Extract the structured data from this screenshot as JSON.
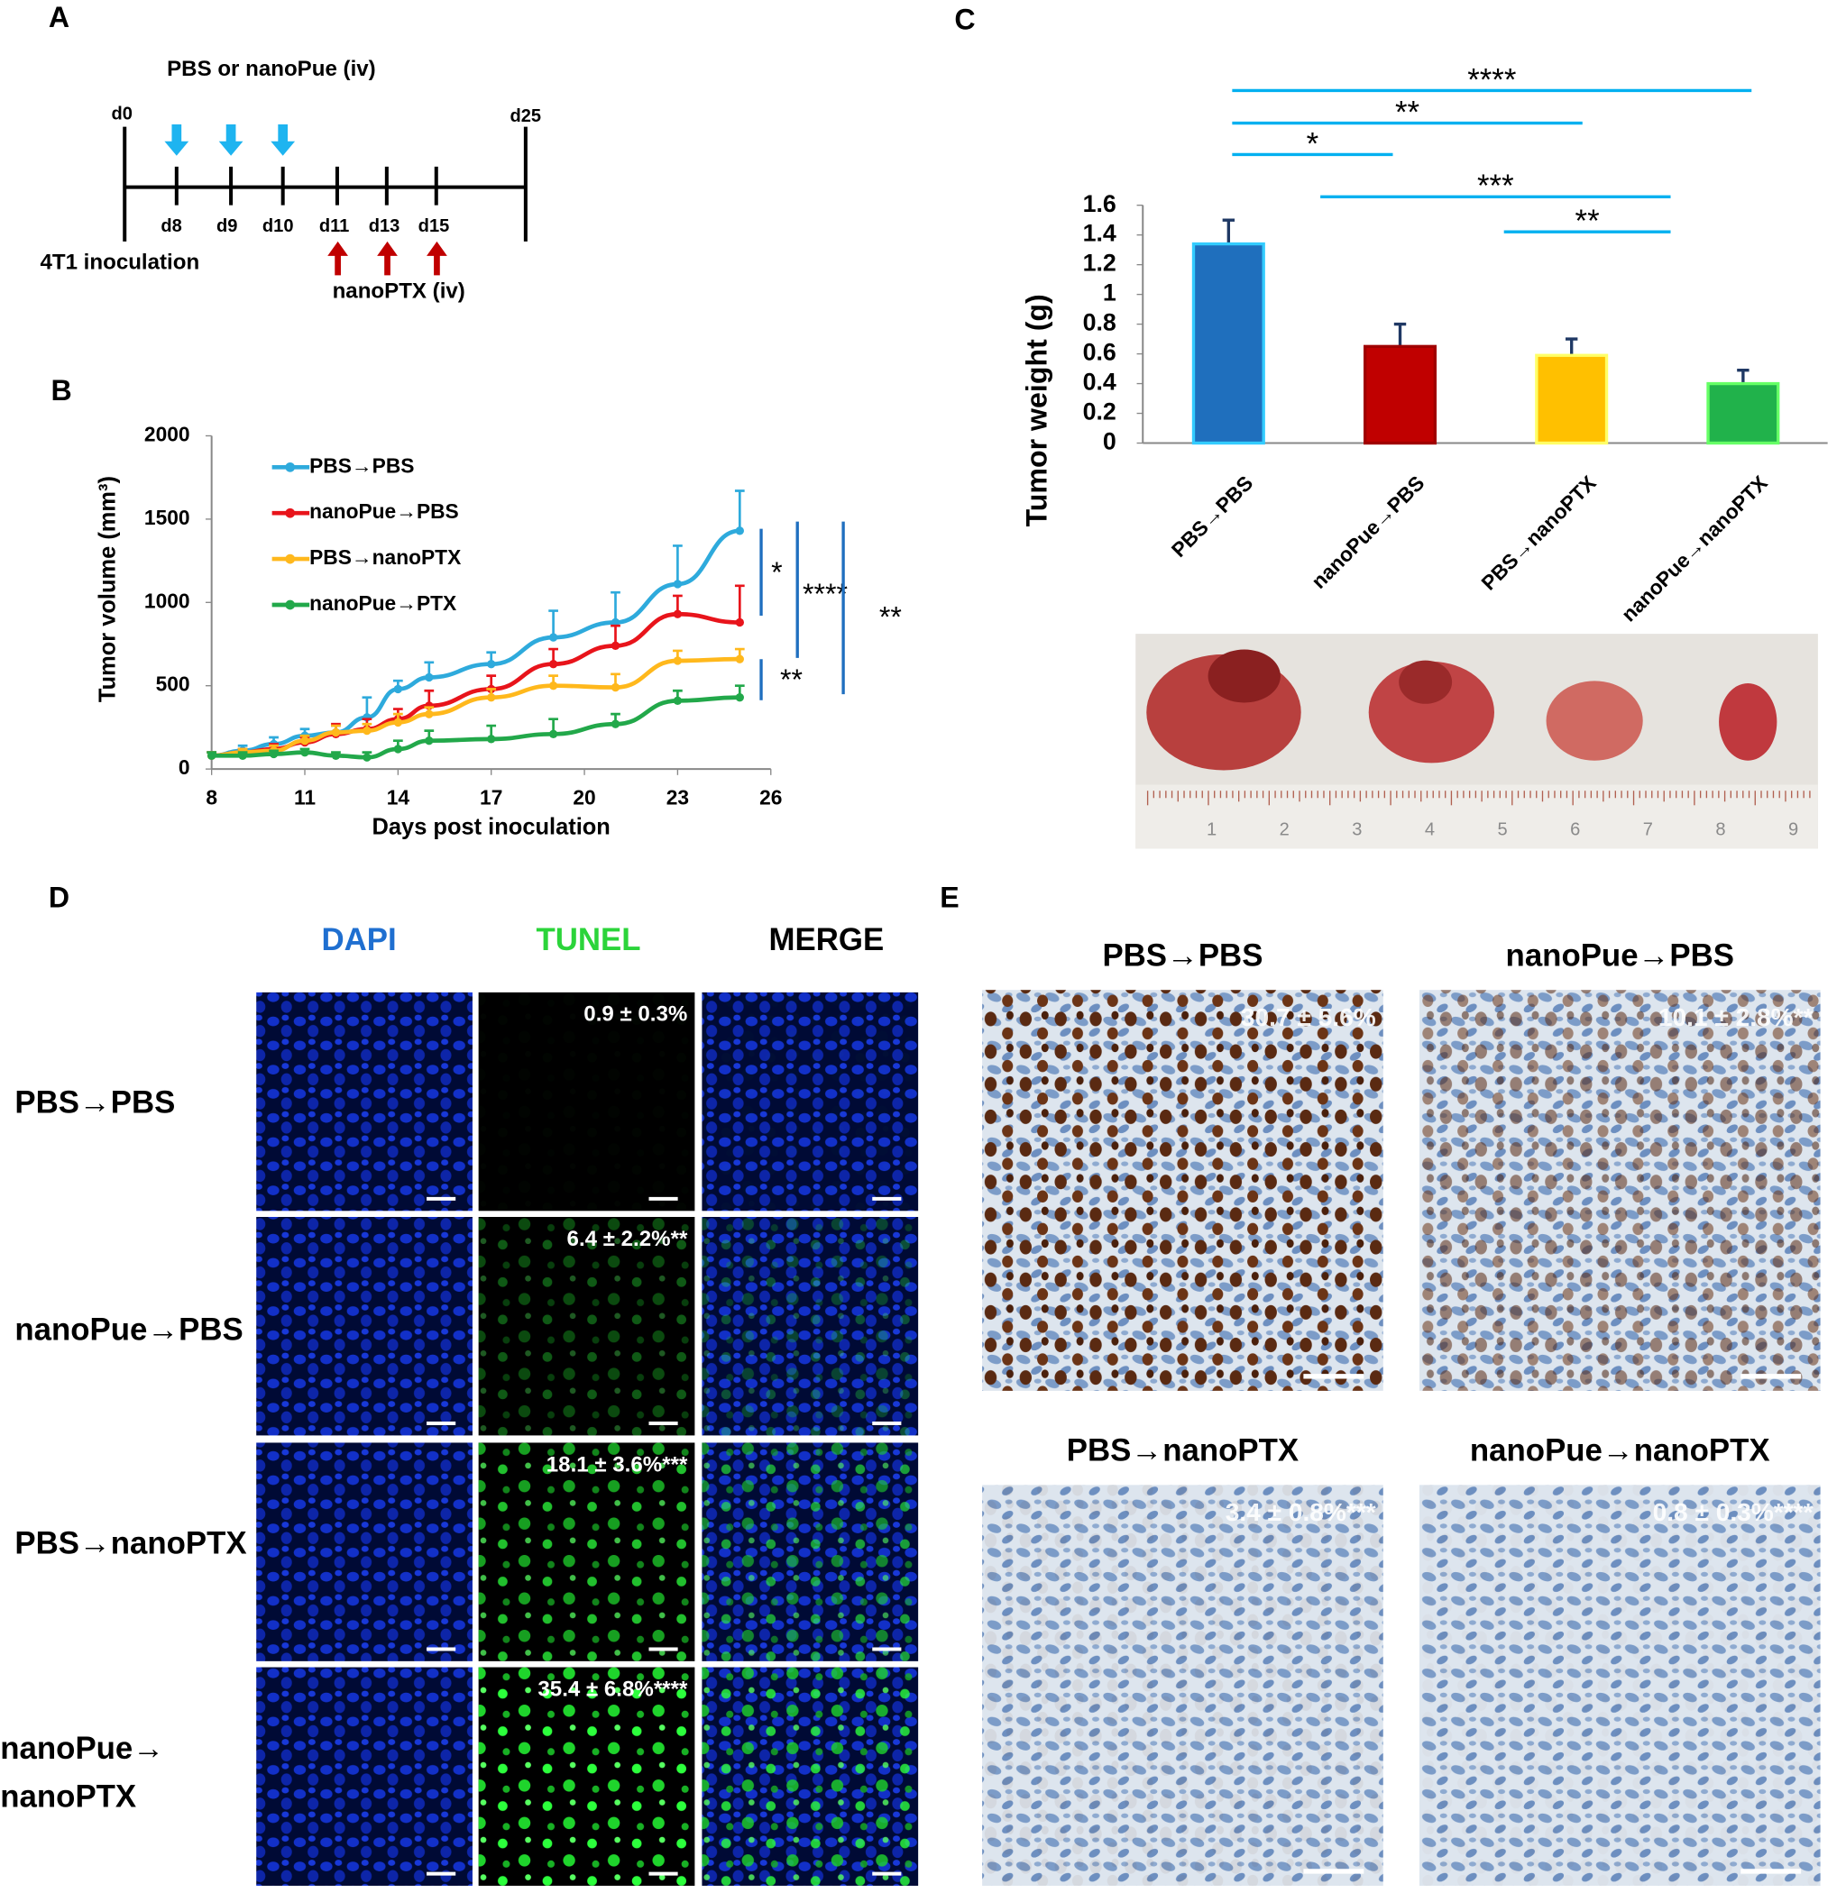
{
  "timeline": {
    "panel_label": "A",
    "top_label": "PBS or nanoPue (iv)",
    "start": "d0",
    "end": "d25",
    "top_days": [
      "d8",
      "d9",
      "d10"
    ],
    "bottom_days": [
      "d11",
      "d13",
      "d15"
    ],
    "start_event": "4T1 inoculation",
    "bottom_label": "nanoPTX (iv)"
  },
  "chart_data": [
    {
      "type": "line",
      "panel_label": "B",
      "x": [
        8,
        9,
        10,
        11,
        12,
        13,
        14,
        15,
        17,
        19,
        21,
        23,
        25
      ],
      "xlim": [
        8,
        26
      ],
      "xticks": [
        8,
        11,
        14,
        17,
        20,
        23,
        26
      ],
      "ylim": [
        0,
        2000
      ],
      "yticks": [
        0,
        500,
        1000,
        1500,
        2000
      ],
      "xlabel": "Days post inoculation",
      "ylabel": "Tumor volume (mm³)",
      "series": [
        {
          "name": "PBS→PBS",
          "color": "#2eaadc",
          "values": [
            80,
            110,
            150,
            200,
            220,
            310,
            480,
            550,
            630,
            790,
            880,
            1110,
            1430
          ],
          "errors": [
            20,
            30,
            40,
            40,
            40,
            120,
            50,
            90,
            70,
            160,
            180,
            230,
            240
          ]
        },
        {
          "name": "nanoPue→PBS",
          "color": "#e8141b",
          "values": [
            80,
            100,
            120,
            160,
            210,
            240,
            300,
            380,
            480,
            630,
            740,
            930,
            880
          ],
          "errors": [
            20,
            20,
            30,
            30,
            60,
            60,
            60,
            90,
            80,
            90,
            120,
            110,
            220
          ]
        },
        {
          "name": "PBS→nanoPTX",
          "color": "#ffb81c",
          "values": [
            80,
            100,
            110,
            170,
            220,
            230,
            280,
            330,
            430,
            500,
            490,
            650,
            660
          ],
          "errors": [
            20,
            20,
            30,
            30,
            40,
            40,
            50,
            40,
            50,
            60,
            80,
            60,
            60
          ]
        },
        {
          "name": "nanoPue→PTX",
          "color": "#22a84a",
          "values": [
            80,
            80,
            90,
            100,
            80,
            70,
            120,
            170,
            180,
            210,
            270,
            410,
            430
          ],
          "errors": [
            20,
            20,
            20,
            20,
            20,
            30,
            50,
            60,
            80,
            90,
            60,
            60,
            70
          ]
        }
      ],
      "annotations": [
        "*",
        "**",
        "****",
        "**"
      ]
    },
    {
      "type": "bar",
      "panel_label": "C",
      "categories": [
        "PBS→PBS",
        "nanoPue→PBS",
        "PBS→nanoPTX",
        "nanoPue→nanoPTX"
      ],
      "values": [
        1.34,
        0.65,
        0.59,
        0.4
      ],
      "errors": [
        0.16,
        0.15,
        0.11,
        0.09
      ],
      "colors": [
        "#1f6fbd",
        "#c00000",
        "#ffc000",
        "#21b24b"
      ],
      "edgecolors": [
        "#33ccff",
        "#a00000",
        "#ffff66",
        "#66ff66"
      ],
      "ylim": [
        0,
        1.6
      ],
      "yticks": [
        0,
        0.2,
        0.4,
        0.6,
        0.8,
        1,
        1.2,
        1.4,
        1.6
      ],
      "ylabel": "Tumor weight (g)",
      "annotations": [
        "****",
        "**",
        "*",
        "***",
        "**"
      ]
    }
  ],
  "photo": {
    "ruler_labels": [
      "1",
      "2",
      "3",
      "4",
      "5",
      "6",
      "7",
      "8",
      "9"
    ]
  },
  "tunel": {
    "panel_label": "D",
    "columns": [
      "DAPI",
      "TUNEL",
      "MERGE"
    ],
    "rows": [
      {
        "label": [
          "PBS→PBS"
        ],
        "value": "0.9 ± 0.3%"
      },
      {
        "label": [
          "nanoPue→PBS"
        ],
        "value": "6.4 ± 2.2%**"
      },
      {
        "label": [
          "PBS→nanoPTX"
        ],
        "value": "18.1 ± 3.6%***"
      },
      {
        "label": [
          "nanoPue→",
          "nanoPTX"
        ],
        "value": "35.4 ± 6.8%****"
      }
    ]
  },
  "ihc": {
    "panel_label": "E",
    "panels": [
      {
        "title": "PBS→PBS",
        "value": "30.7 ± 5.6%"
      },
      {
        "title": "nanoPue→PBS",
        "value": "10.1 ± 2.8%**"
      },
      {
        "title": "PBS→nanoPTX",
        "value": "3.4 ± 0.8%***"
      },
      {
        "title": "nanoPue→nanoPTX",
        "value": "0.8 ± 0.3%****"
      }
    ]
  }
}
